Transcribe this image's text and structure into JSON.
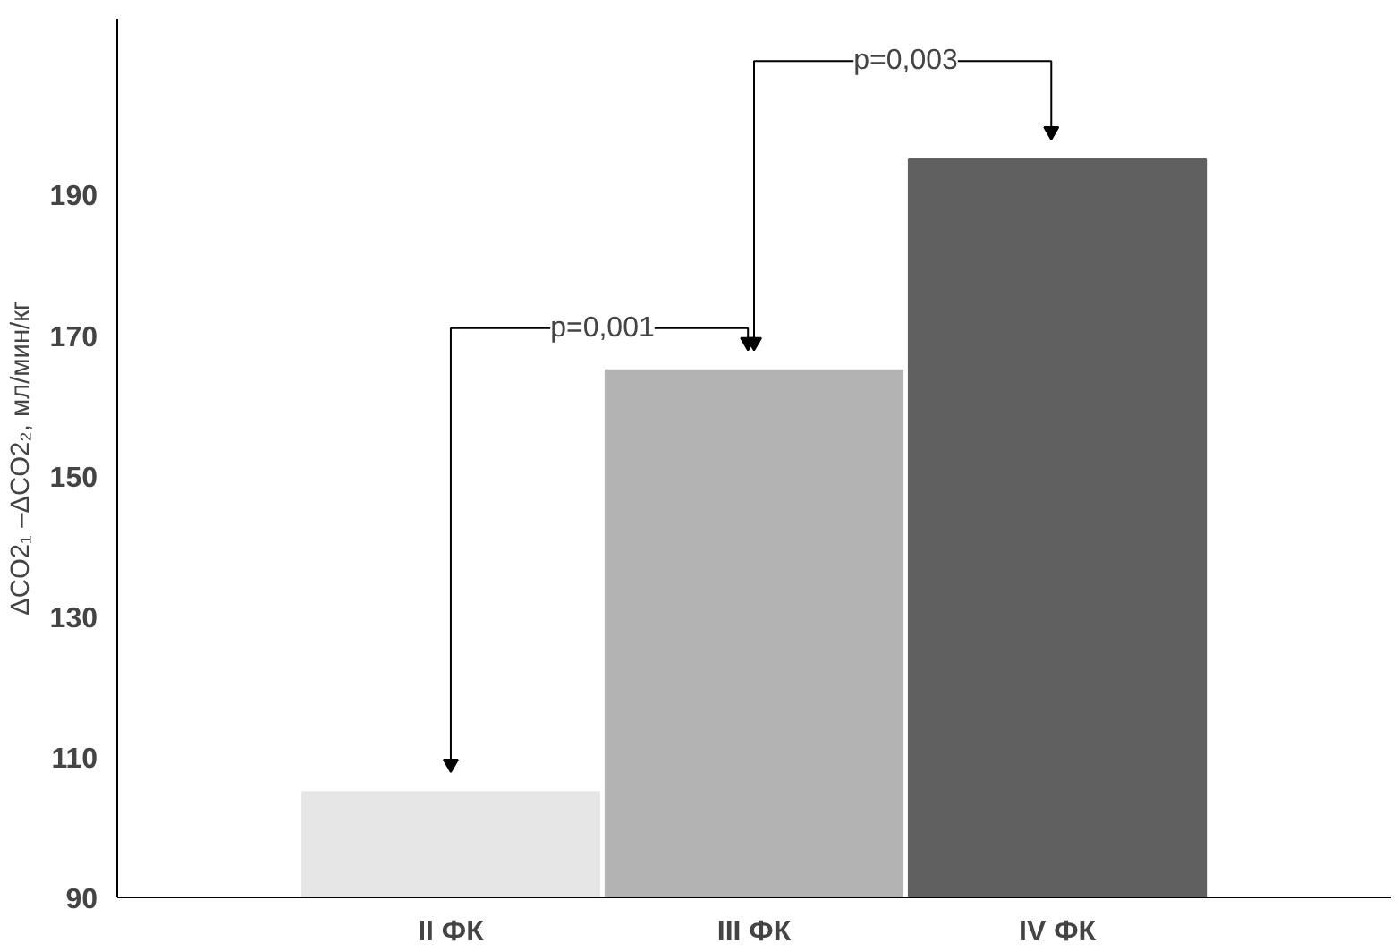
{
  "chart_data": {
    "type": "bar",
    "ylabel": "ΔCO2₁ –ΔCO2₂, мл/мин/кг",
    "categories": [
      "II ФК",
      "III ФК",
      "IV ФК"
    ],
    "values": [
      105,
      165,
      195
    ],
    "colors": [
      "#e6e6e6",
      "#b3b3b3",
      "#606060"
    ],
    "ylim": [
      90,
      215
    ],
    "yticks": [
      90,
      110,
      130,
      150,
      170,
      190
    ],
    "grid": false,
    "annotations": [
      "p=0,001",
      "p=0,003"
    ]
  }
}
